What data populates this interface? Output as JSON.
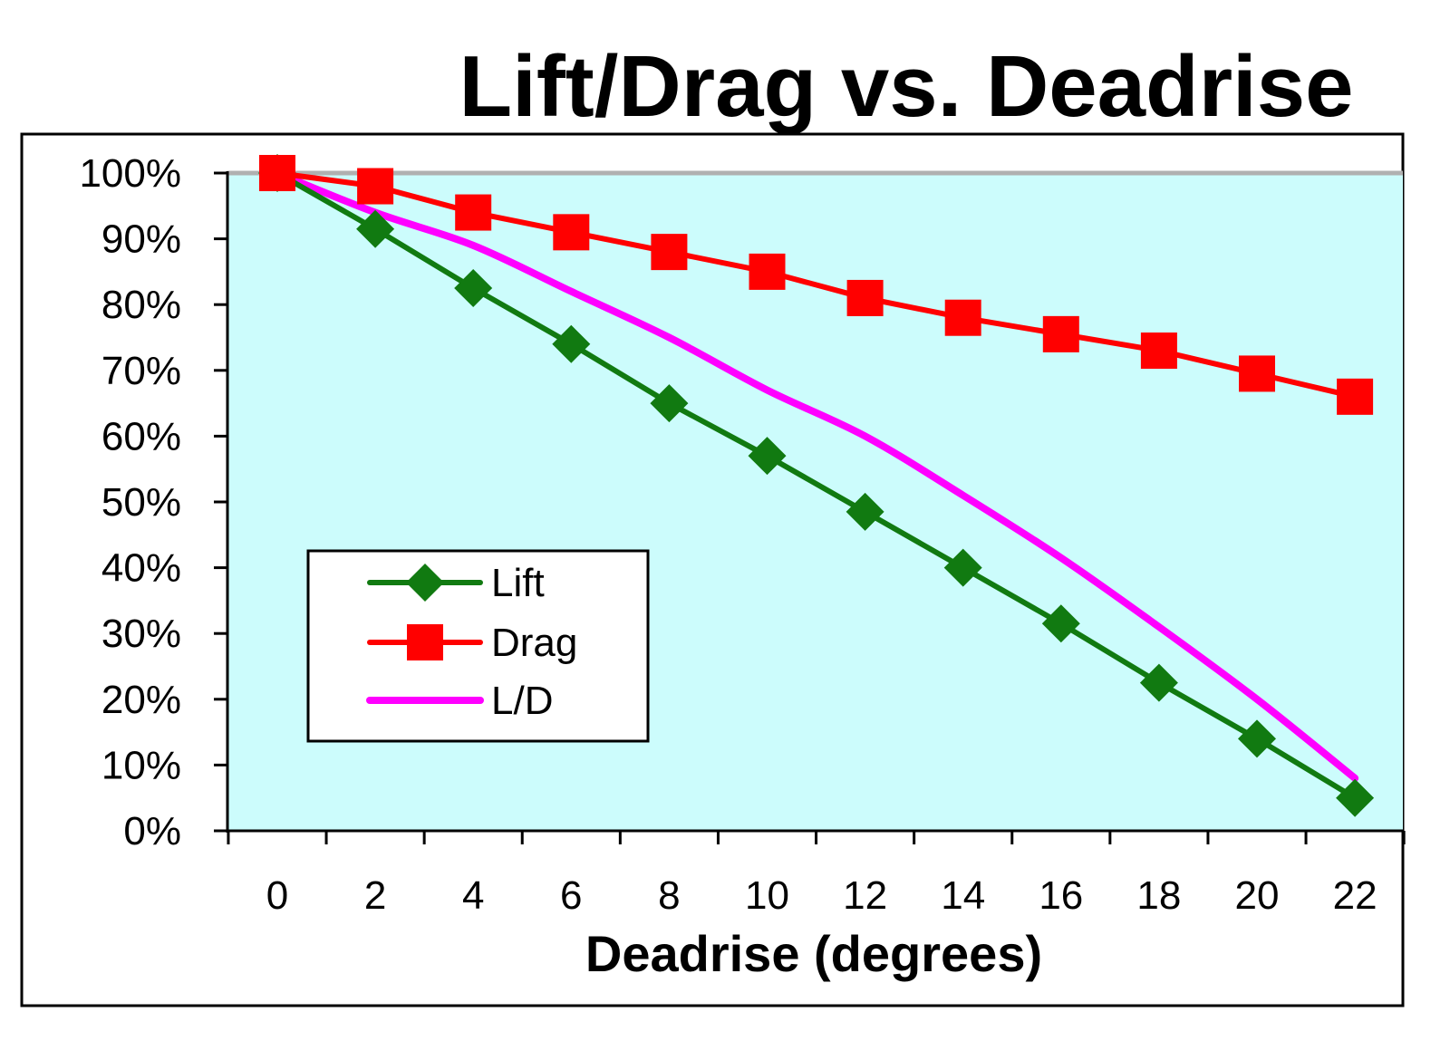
{
  "chart_data": {
    "type": "line",
    "title": "Lift/Drag vs. Deadrise",
    "xlabel": "Deadrise (degrees)",
    "ylabel": "",
    "x": [
      0,
      2,
      4,
      6,
      8,
      10,
      12,
      14,
      16,
      18,
      20,
      22
    ],
    "x_ticks": [
      "0",
      "2",
      "4",
      "6",
      "8",
      "10",
      "12",
      "14",
      "16",
      "18",
      "20",
      "22"
    ],
    "y_ticks": [
      "0%",
      "10%",
      "20%",
      "30%",
      "40%",
      "50%",
      "60%",
      "70%",
      "80%",
      "90%",
      "100%"
    ],
    "ylim": [
      0,
      100
    ],
    "legend_position": "lower-left",
    "grid": false,
    "plot_background": "#ccfcfc",
    "series": [
      {
        "name": "Lift",
        "color": "#117a11",
        "marker": "diamond",
        "values": [
          100,
          91.5,
          82.5,
          74,
          65,
          57,
          48.5,
          40,
          31.5,
          22.5,
          14,
          5
        ]
      },
      {
        "name": "Drag",
        "color": "#ff0000",
        "marker": "square",
        "values": [
          100,
          98,
          94,
          91,
          88,
          85,
          81,
          78,
          75.5,
          73,
          69.5,
          66
        ]
      },
      {
        "name": "L/D",
        "color": "#ff00ff",
        "marker": "none",
        "values": [
          100,
          94,
          89,
          82,
          75,
          67,
          60,
          51,
          41.5,
          31,
          20,
          8
        ]
      }
    ]
  }
}
